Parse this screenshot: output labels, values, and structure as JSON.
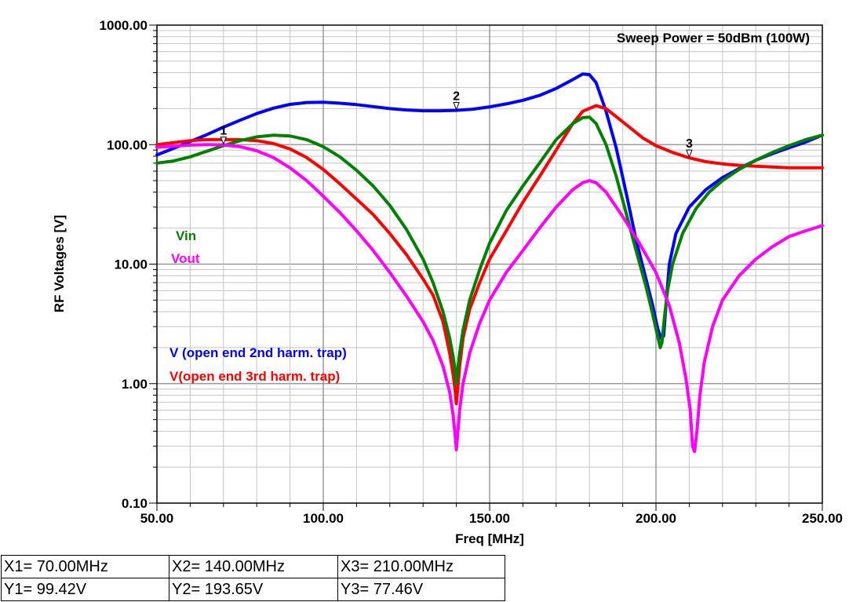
{
  "chart_data": {
    "type": "line",
    "xlabel": "Freq [MHz]",
    "ylabel": "RF Voltages [V]",
    "xlim": [
      50,
      250
    ],
    "ylim": [
      0.1,
      1000
    ],
    "yscale": "log",
    "grid": true,
    "x_tick_labels": [
      "50.00",
      "100.00",
      "150.00",
      "200.00",
      "250.00"
    ],
    "y_tick_labels": [
      "1000.00",
      "100.00",
      "10.00",
      "1.00",
      "0.10"
    ],
    "annotation": "Sweep Power = 50dBm (100W)",
    "series": [
      {
        "name": "V (open end 2nd harm. trap)",
        "color": "#0000ff",
        "x": [
          50,
          55,
          60,
          65,
          70,
          75,
          80,
          85,
          90,
          95,
          100,
          105,
          110,
          115,
          120,
          125,
          130,
          135,
          140,
          145,
          150,
          155,
          160,
          165,
          170,
          175,
          178,
          180,
          182,
          185,
          188,
          191,
          194,
          197,
          199,
          200.5,
          201.5,
          202.3,
          203,
          204,
          206,
          210,
          215,
          220,
          225,
          230,
          235,
          240,
          245,
          250
        ],
        "values": [
          82,
          93,
          106,
          121,
          140,
          160,
          182,
          202,
          217,
          225,
          226,
          222,
          216,
          208,
          200,
          195,
          192,
          192,
          193.65,
          198,
          207,
          219,
          235,
          258,
          295,
          350,
          390,
          385,
          330,
          190,
          95,
          40,
          16,
          7.5,
          4.5,
          2.9,
          2.4,
          2.5,
          4.5,
          10,
          18,
          30,
          42,
          53,
          63,
          74,
          84,
          94,
          105,
          120
        ]
      },
      {
        "name": "V(open end 3rd harm. trap)",
        "color": "#ff0000",
        "x": [
          50,
          55,
          60,
          65,
          70,
          75,
          80,
          85,
          90,
          95,
          100,
          105,
          110,
          115,
          120,
          125,
          130,
          133,
          136,
          138,
          139,
          139.6,
          140,
          140.4,
          141,
          142,
          144,
          147,
          150,
          155,
          160,
          165,
          170,
          175,
          178,
          182,
          185,
          188,
          192,
          196,
          200,
          205,
          210,
          215,
          220,
          225,
          230,
          235,
          240,
          245,
          250
        ],
        "values": [
          100,
          104,
          108,
          110,
          110,
          110,
          108,
          102,
          92,
          78,
          62,
          47,
          35,
          26,
          18,
          12,
          7.5,
          5.5,
          3.3,
          1.8,
          1.2,
          0.9,
          0.68,
          0.9,
          1.4,
          2.4,
          4.2,
          7,
          11,
          19,
          33,
          54,
          90,
          150,
          190,
          212,
          200,
          172,
          140,
          114,
          98,
          86,
          77.46,
          72,
          69,
          67,
          66,
          65,
          64,
          64,
          64
        ]
      },
      {
        "name": "Vin",
        "color": "#008000",
        "x": [
          50,
          55,
          60,
          65,
          70,
          75,
          80,
          85,
          90,
          95,
          100,
          105,
          110,
          115,
          120,
          125,
          130,
          133,
          136,
          138,
          139,
          139.6,
          140,
          140.4,
          141,
          142,
          144,
          147,
          150,
          155,
          160,
          165,
          170,
          175,
          178,
          180,
          182,
          185,
          188,
          191,
          194,
          197,
          199,
          200.5,
          201.3,
          201.8,
          202.5,
          203.5,
          205,
          208,
          212,
          216,
          220,
          225,
          230,
          235,
          240,
          245,
          250
        ],
        "values": [
          70,
          73,
          79,
          88,
          98,
          108,
          116,
          120,
          118,
          110,
          96,
          79,
          61,
          45,
          31,
          19.5,
          11,
          7,
          4,
          2.4,
          1.7,
          1.3,
          1.0,
          1.3,
          1.8,
          2.8,
          5,
          9,
          15,
          28,
          45,
          70,
          110,
          150,
          168,
          170,
          150,
          100,
          55,
          27,
          13,
          6.5,
          3.8,
          2.5,
          2.0,
          2.2,
          3.5,
          6,
          10,
          18,
          29,
          40,
          50,
          62,
          74,
          86,
          98,
          110,
          120
        ]
      },
      {
        "name": "Vout",
        "color": "#ff00ff",
        "x": [
          50,
          55,
          60,
          65,
          70,
          75,
          80,
          85,
          90,
          95,
          100,
          105,
          110,
          115,
          120,
          125,
          130,
          133,
          136,
          138,
          139,
          139.6,
          140,
          140.4,
          141,
          142,
          144,
          147,
          150,
          155,
          160,
          165,
          170,
          175,
          178,
          180,
          182,
          185,
          190,
          195,
          200,
          204,
          207,
          209,
          210.3,
          211,
          211.6,
          212.3,
          213.2,
          214.5,
          217,
          220,
          225,
          230,
          235,
          240,
          245,
          250
        ],
        "values": [
          95,
          97,
          99,
          100,
          99.42,
          96,
          89,
          78,
          64,
          50,
          37,
          27,
          19,
          13,
          8.5,
          5.4,
          3.3,
          2.3,
          1.4,
          0.85,
          0.55,
          0.38,
          0.28,
          0.38,
          0.6,
          1.0,
          1.8,
          3.2,
          5,
          8.5,
          13,
          20,
          30,
          42,
          48,
          50,
          48,
          40,
          25,
          15,
          8.5,
          4.5,
          2.2,
          1.1,
          0.6,
          0.3,
          0.27,
          0.4,
          0.8,
          1.5,
          3,
          5,
          8,
          11,
          14,
          17,
          19,
          21
        ]
      }
    ],
    "legend": [
      {
        "label": "Vin",
        "color": "#008000"
      },
      {
        "label": "Vout",
        "color": "#ff00ff"
      },
      {
        "label": "V (open end 2nd harm. trap)",
        "color": "#0000ff"
      },
      {
        "label": "V(open end 3rd harm. trap)",
        "color": "#ff0000"
      }
    ],
    "markers": [
      {
        "label": "1",
        "x": 70,
        "y": 99.42
      },
      {
        "label": "2",
        "x": 140,
        "y": 193.65
      },
      {
        "label": "3",
        "x": 210,
        "y": 77.46
      }
    ]
  },
  "readout": {
    "x1": "X1= 70.00MHz",
    "x2": "X2= 140.00MHz",
    "x3": "X3= 210.00MHz",
    "y1": "Y1= 99.42V",
    "y2": "Y2= 193.65V",
    "y3": "Y3= 77.46V"
  }
}
